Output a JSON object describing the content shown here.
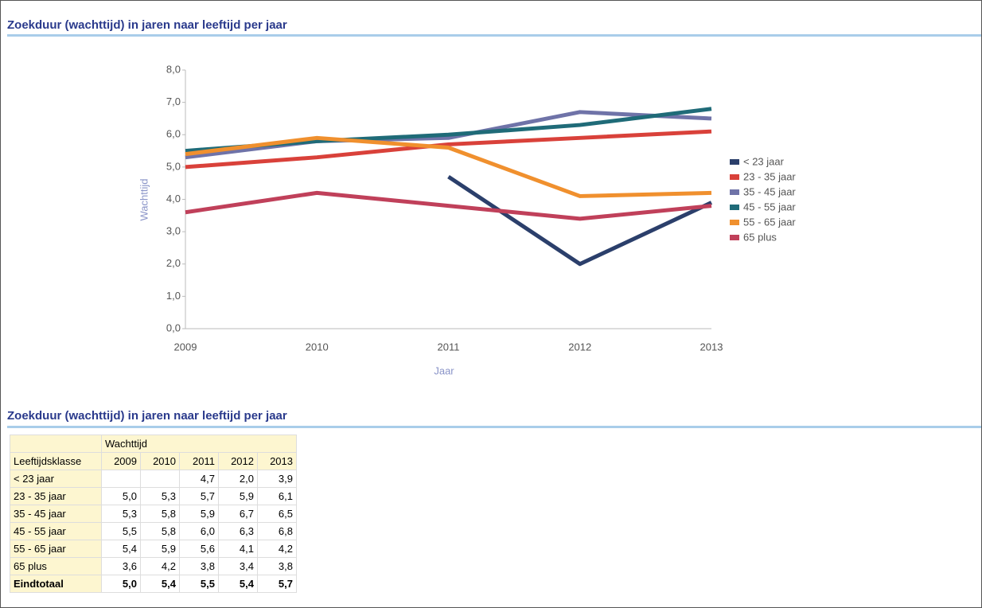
{
  "chart_data": {
    "type": "line",
    "title": "Zoekduur (wachttijd) in jaren naar leeftijd per jaar",
    "x_label": "Jaar",
    "y_label": "Wachttijd",
    "categories": [
      "2009",
      "2010",
      "2011",
      "2012",
      "2013"
    ],
    "series": [
      {
        "name": "< 23 jaar",
        "color": "#2b3f6b",
        "values": [
          null,
          null,
          4.7,
          2.0,
          3.9
        ]
      },
      {
        "name": "23 - 35 jaar",
        "color": "#d9413a",
        "values": [
          5.0,
          5.3,
          5.7,
          5.9,
          6.1
        ]
      },
      {
        "name": "35 - 45 jaar",
        "color": "#6f73a8",
        "values": [
          5.3,
          5.8,
          5.9,
          6.7,
          6.5
        ]
      },
      {
        "name": "45 - 55 jaar",
        "color": "#1f6b78",
        "values": [
          5.5,
          5.8,
          6.0,
          6.3,
          6.8
        ]
      },
      {
        "name": "55 - 65 jaar",
        "color": "#f0902e",
        "values": [
          5.4,
          5.9,
          5.6,
          4.1,
          4.2
        ]
      },
      {
        "name": "65 plus",
        "color": "#c0405a",
        "values": [
          3.6,
          4.2,
          3.8,
          3.4,
          3.8
        ]
      }
    ],
    "ylim": [
      0,
      8
    ],
    "yticks": [
      {
        "value": 0,
        "label": "0,0"
      },
      {
        "value": 1,
        "label": "1,0"
      },
      {
        "value": 2,
        "label": "2,0"
      },
      {
        "value": 3,
        "label": "3,0"
      },
      {
        "value": 4,
        "label": "4,0"
      },
      {
        "value": 5,
        "label": "5,0"
      },
      {
        "value": 6,
        "label": "6,0"
      },
      {
        "value": 7,
        "label": "7,0"
      },
      {
        "value": 8,
        "label": "8,0"
      }
    ],
    "grid": false,
    "legend": "right"
  },
  "table": {
    "title": "Zoekduur (wachttijd) in jaren naar leeftijd per jaar",
    "group_header": "Wachttijd",
    "columns": [
      "Leeftijdsklasse",
      "2009",
      "2010",
      "2011",
      "2012",
      "2013"
    ],
    "rows": [
      [
        "< 23 jaar",
        null,
        null,
        "4,7",
        "2,0",
        "3,9"
      ],
      [
        "23 - 35 jaar",
        "5,0",
        "5,3",
        "5,7",
        "5,9",
        "6,1"
      ],
      [
        "35 - 45 jaar",
        "5,3",
        "5,8",
        "5,9",
        "6,7",
        "6,5"
      ],
      [
        "45 - 55 jaar",
        "5,5",
        "5,8",
        "6,0",
        "6,3",
        "6,8"
      ],
      [
        "55 - 65 jaar",
        "5,4",
        "5,9",
        "5,6",
        "4,1",
        "4,2"
      ],
      [
        "65 plus",
        "3,6",
        "4,2",
        "3,8",
        "3,4",
        "3,8"
      ]
    ],
    "total": [
      "Eindtotaal",
      "5,0",
      "5,4",
      "5,5",
      "5,4",
      "5,7"
    ]
  }
}
